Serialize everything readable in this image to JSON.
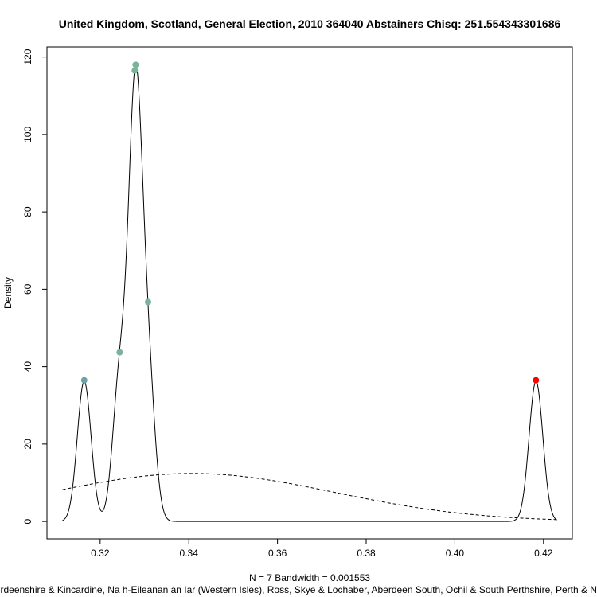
{
  "chart_data": {
    "type": "line",
    "title": "United Kingdom, Scotland, General Election, 2010 364040 Abstainers Chisq: 251.554343301686",
    "xlabel": "N = 7   Bandwidth = 0.001553",
    "ylabel": "Density",
    "subtitle": "West Aberdeenshire & Kincardine, Na h-Eileanan an Iar (Western Isles), Ross, Skye & Lochaber, Aberdeen South, Ochil & South Perthshire, Perth & North Perthshire",
    "xlim": [
      0.308,
      0.4265
    ],
    "ylim": [
      -4.5,
      122.6
    ],
    "x_ticks": [
      0.32,
      0.34,
      0.36,
      0.38,
      0.4,
      0.42
    ],
    "x_tick_labels": [
      "0.32",
      "0.34",
      "0.36",
      "0.38",
      "0.40",
      "0.42"
    ],
    "y_ticks": [
      0,
      20,
      40,
      60,
      80,
      100,
      120
    ],
    "y_tick_labels": [
      "0",
      "20",
      "40",
      "60",
      "80",
      "100",
      "120"
    ],
    "bandwidth": 0.001553,
    "n": 7,
    "density_x_range": [
      0.3115,
      0.423
    ],
    "reference_curve": {
      "style": "dashed",
      "mean": 0.3407,
      "sd": 0.0322,
      "x_range": [
        0.3115,
        0.423
      ]
    },
    "points": [
      {
        "x": 0.3164,
        "y": 36.5,
        "color": "#6aa3a8"
      },
      {
        "x": 0.3244,
        "y": 43.7,
        "color": "#79b39a"
      },
      {
        "x": 0.3278,
        "y": 116.5,
        "color": "#79b39a"
      },
      {
        "x": 0.328,
        "y": 118.0,
        "color": "#79b39a"
      },
      {
        "x": 0.3308,
        "y": 56.7,
        "color": "#79b39a"
      },
      {
        "x": 0.4183,
        "y": 36.5,
        "color": "#ff0000"
      }
    ]
  }
}
